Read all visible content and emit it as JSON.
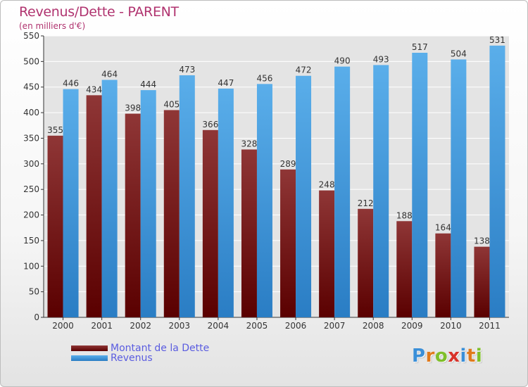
{
  "chart_data": {
    "type": "bar",
    "title": "Revenus/Dette - PARENT",
    "subtitle": "(en milliers d'€)",
    "categories": [
      "2000",
      "2001",
      "2002",
      "2003",
      "2004",
      "2005",
      "2006",
      "2007",
      "2008",
      "2009",
      "2010",
      "2011"
    ],
    "series": [
      {
        "name": "Montant de la Dette",
        "color": "#7a1f1f",
        "values": [
          355,
          434,
          398,
          405,
          366,
          328,
          289,
          248,
          212,
          188,
          164,
          138
        ]
      },
      {
        "name": "Revenus",
        "color": "#3f97dd",
        "values": [
          446,
          464,
          444,
          473,
          447,
          456,
          472,
          490,
          493,
          517,
          504,
          531
        ]
      }
    ],
    "ylim": [
      0,
      550
    ],
    "yticks": [
      0,
      50,
      100,
      150,
      200,
      250,
      300,
      350,
      400,
      450,
      500,
      550
    ],
    "grid": true,
    "legend_position": "bottom-left"
  },
  "logo": {
    "letters": [
      "P",
      "r",
      "o",
      "x",
      "i",
      "t",
      "i"
    ],
    "colors": [
      "#3a8fd8",
      "#e07a1c",
      "#7fbf2a",
      "#d8332a",
      "#3a8fd8",
      "#e07a1c",
      "#7fbf2a"
    ]
  }
}
